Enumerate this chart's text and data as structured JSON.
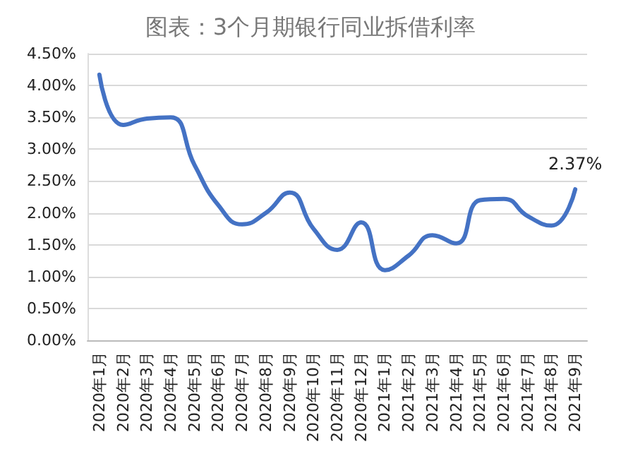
{
  "chart_data": {
    "type": "line",
    "title": "图表：3个月期银行同业拆借利率",
    "categories": [
      "2020年1月",
      "2020年2月",
      "2020年3月",
      "2020年4月",
      "2020年5月",
      "2020年6月",
      "2020年7月",
      "2020年8月",
      "2020年9月",
      "2020年10月",
      "2020年11月",
      "2020年12月",
      "2021年1月",
      "2021年2月",
      "2021年3月",
      "2021年4月",
      "2021年5月",
      "2021年6月",
      "2021年7月",
      "2021年8月",
      "2021年9月"
    ],
    "series": [
      {
        "color": "#4472c4",
        "values": [
          4.17,
          3.38,
          3.48,
          3.5,
          2.75,
          2.12,
          1.82,
          2.0,
          2.32,
          1.75,
          1.42,
          1.85,
          1.1,
          1.33,
          1.65,
          1.52,
          2.2,
          2.22,
          1.95,
          1.8,
          2.37
        ],
        "value_labels": [
          null,
          null,
          null,
          null,
          null,
          null,
          null,
          null,
          null,
          null,
          null,
          null,
          null,
          null,
          null,
          null,
          null,
          null,
          null,
          null,
          "2.37%"
        ]
      }
    ],
    "ylim": [
      0,
      4.5
    ],
    "yticks": [
      {
        "value": 0,
        "label": "0.00%"
      },
      {
        "value": 0.5,
        "label": "0.50%"
      },
      {
        "value": 1,
        "label": "1.00%"
      },
      {
        "value": 1.5,
        "label": "1.50%"
      },
      {
        "value": 2,
        "label": "2.00%"
      },
      {
        "value": 2.5,
        "label": "2.50%"
      },
      {
        "value": 3,
        "label": "3.00%"
      },
      {
        "value": 3.5,
        "label": "3.50%"
      },
      {
        "value": 4,
        "label": "4.00%"
      },
      {
        "value": 4.5,
        "label": "4.50%"
      }
    ],
    "grid": "y",
    "marker": "none",
    "line_style": "solid"
  }
}
